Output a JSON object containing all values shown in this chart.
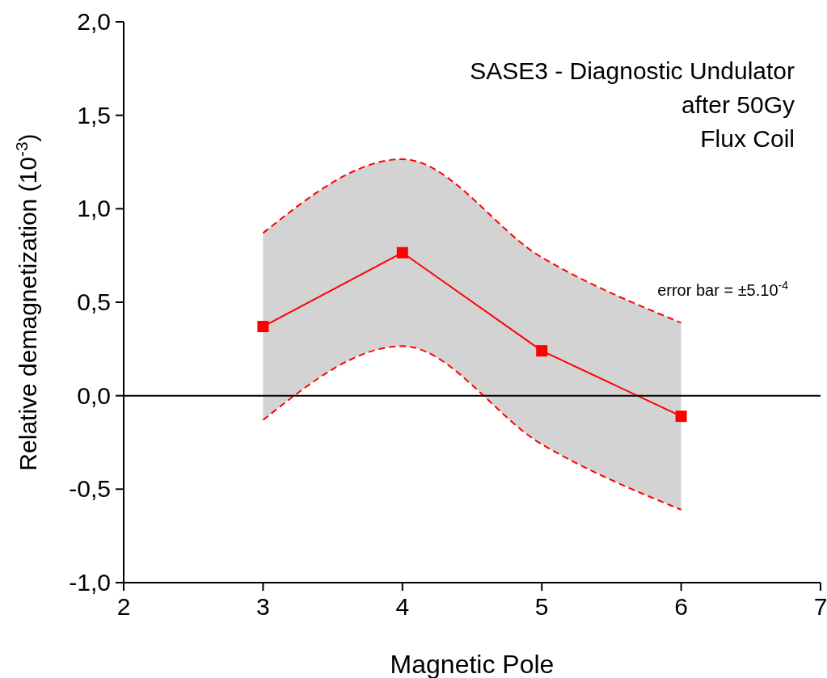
{
  "chart_data": {
    "type": "line",
    "title": "SASE3 - Diagnostic Undulator",
    "xlabel": "Magnetic Pole",
    "ylabel": "Relative demagnetization (10$^{-3}$)",
    "annotations": [
      "after 50Gy",
      "Flux Coil",
      "error bar = ±5.10$^{-4}$"
    ],
    "x": [
      3,
      4,
      5,
      6
    ],
    "series": [
      {
        "color": "#ff0000",
        "values": [
          0.37,
          0.765,
          0.24,
          -0.11
        ],
        "lower": [
          -0.13,
          0.265,
          -0.26,
          -0.61
        ],
        "upper": [
          0.87,
          1.265,
          0.74,
          0.39
        ]
      },
      {
        "color": "#ff0000",
        "values": [
          0.87,
          1.265,
          0.74,
          0.39
        ],
        "line_style": "dashed",
        "marker": "none"
      },
      {
        "color": "#ff0000",
        "values": [
          -0.13,
          0.265,
          -0.26,
          -0.61
        ],
        "line_style": "dashed",
        "marker": "none"
      }
    ],
    "xlim": [
      2,
      7
    ],
    "xticks": [
      2,
      3,
      4,
      5,
      6,
      7
    ],
    "ylim": [
      -1,
      2
    ],
    "yticks": [
      {
        "value": -1,
        "label": "-1,0"
      },
      {
        "value": -0.5,
        "label": "-0,5"
      },
      {
        "value": 0,
        "label": "0,0"
      },
      {
        "value": 0.5,
        "label": "0,5"
      },
      {
        "value": 1,
        "label": "1,0"
      },
      {
        "value": 1.5,
        "label": "1,5"
      },
      {
        "value": 2,
        "label": "2,0"
      }
    ],
    "ref_lines": [
      {
        "axis": "y",
        "value": 0,
        "color": "#000000"
      }
    ],
    "marker": "square",
    "line_style": "solid"
  }
}
